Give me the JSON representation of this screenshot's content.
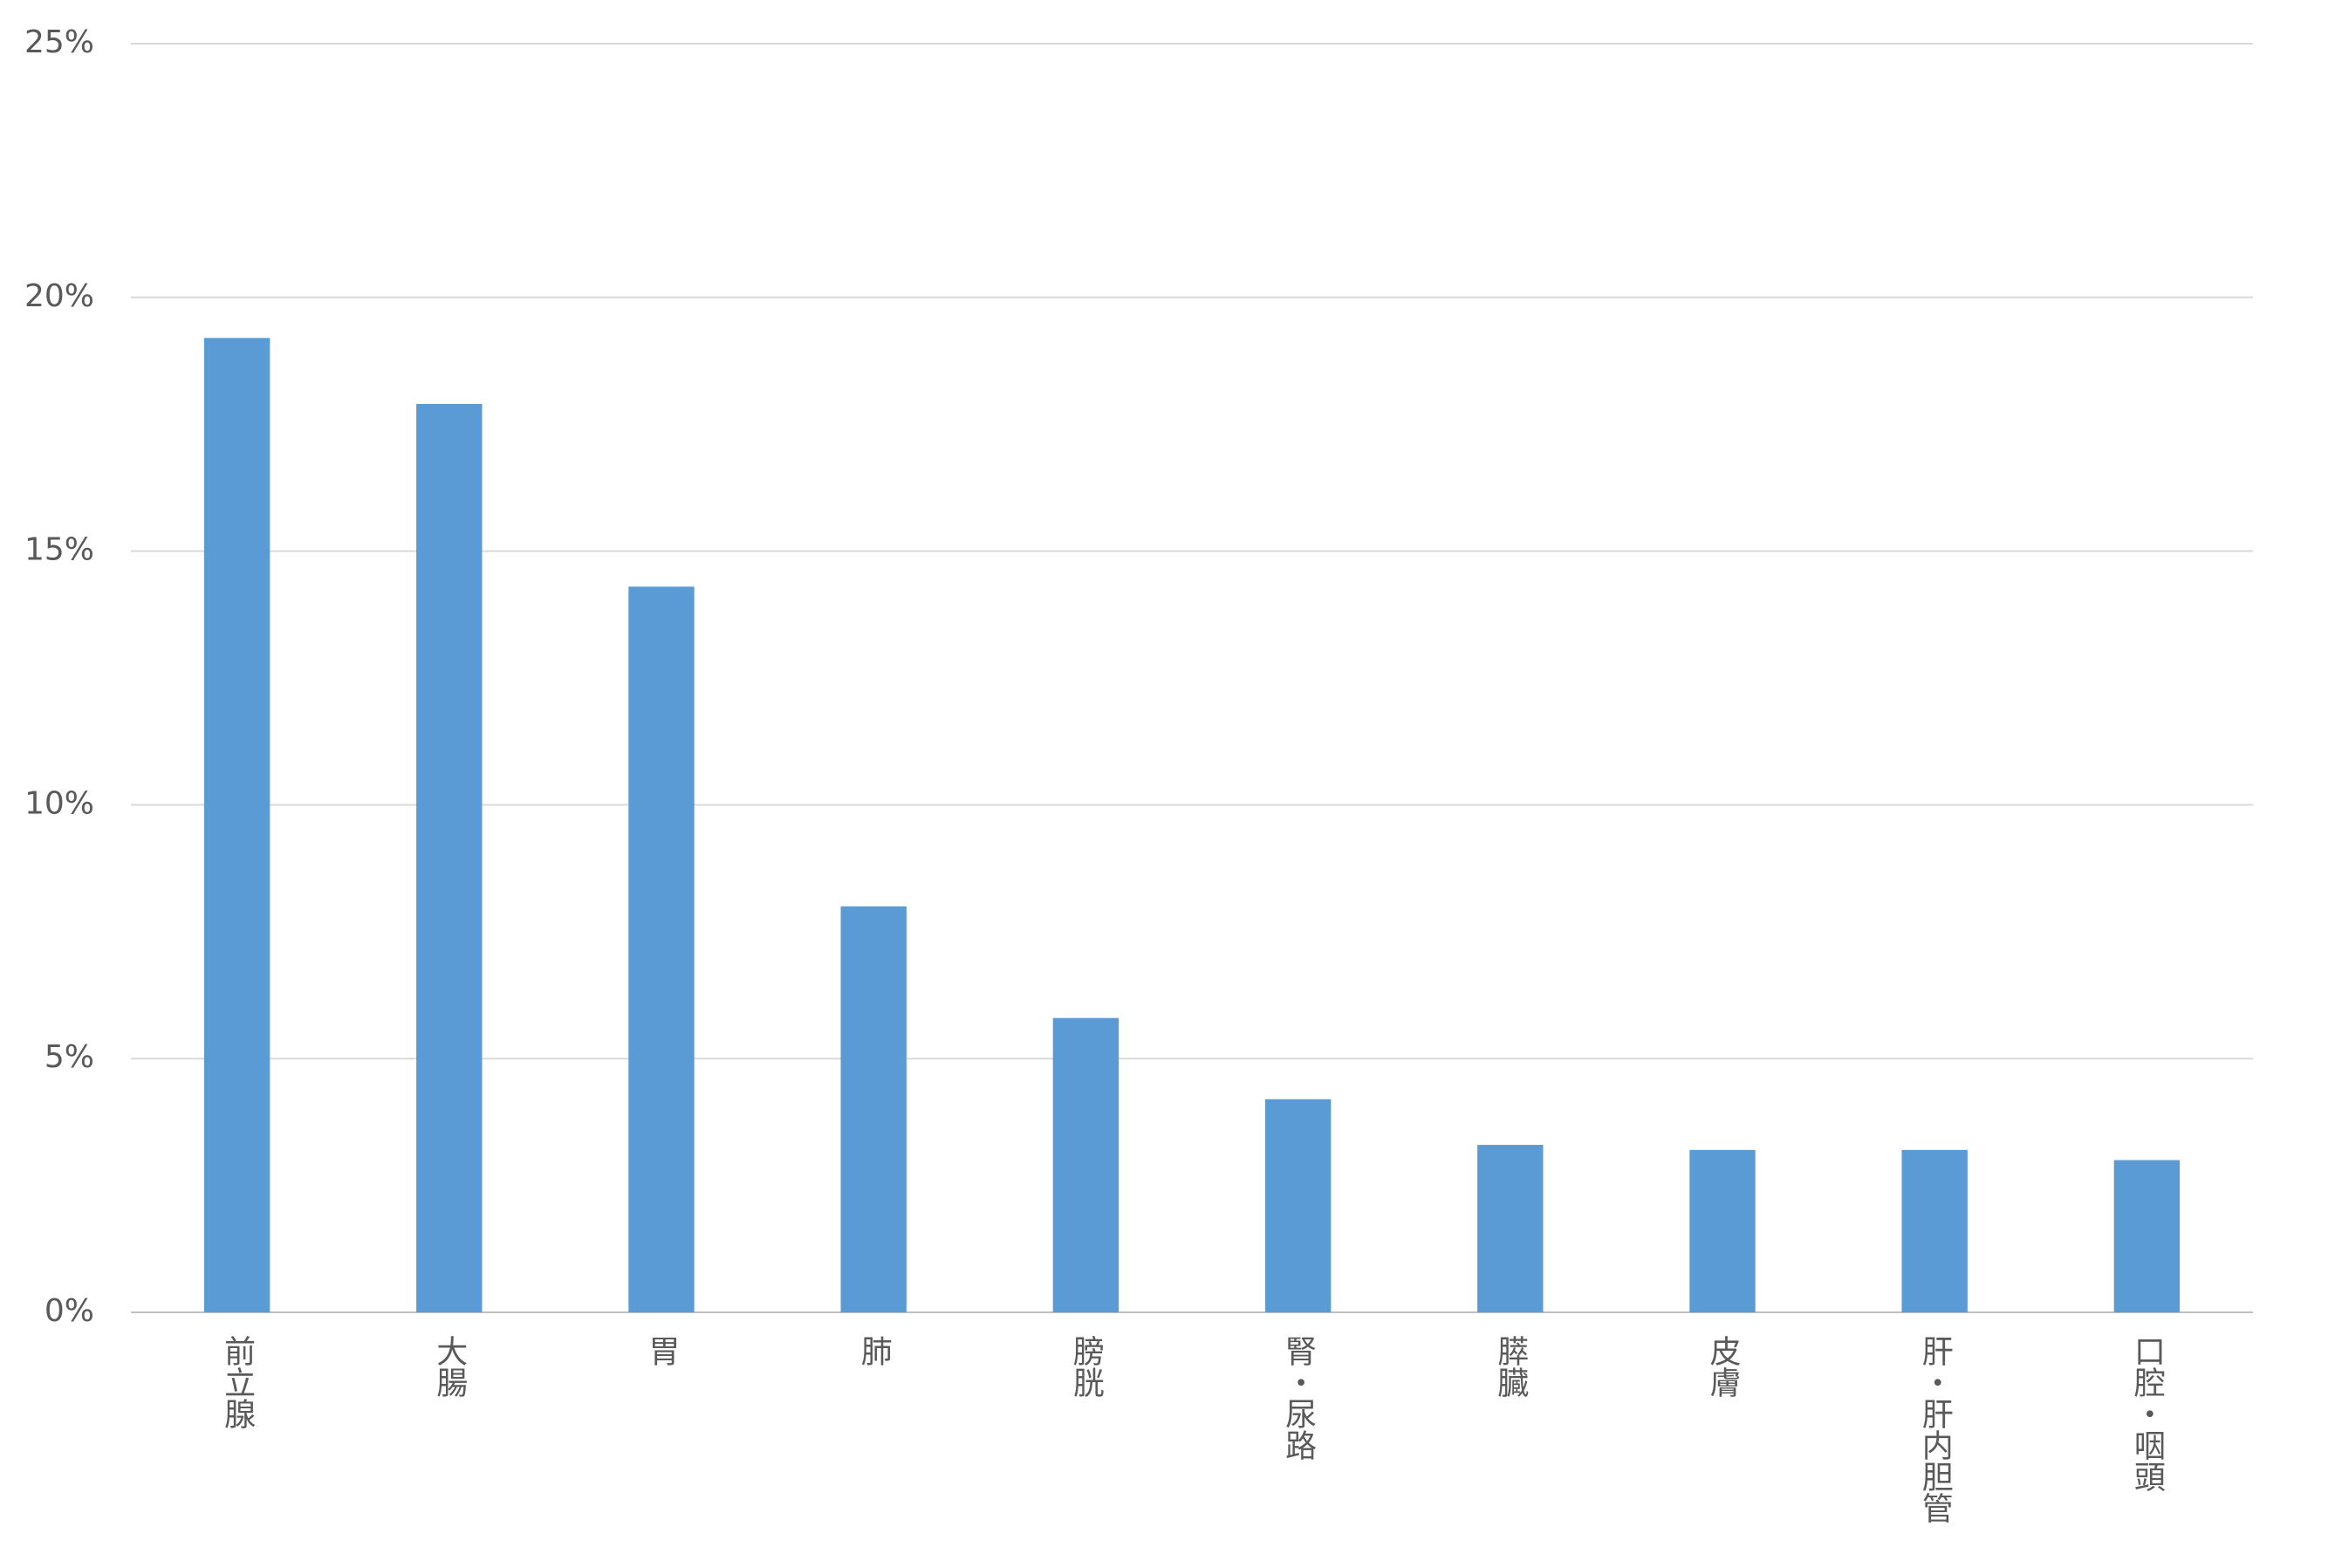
{
  "chart_data": {
    "type": "bar",
    "categories": [
      "前立腺",
      "大腸",
      "胃",
      "肺",
      "膀胱",
      "腎・尿路",
      "膵臓",
      "皮膚",
      "肝・肝内胆管",
      "口腔・咽頭"
    ],
    "values": [
      19.2,
      17.9,
      14.3,
      8.0,
      5.8,
      4.2,
      3.3,
      3.2,
      3.2,
      3.0
    ],
    "color": "#5b9bd5",
    "ylim": [
      0,
      25
    ],
    "yticks": [
      {
        "value": 0,
        "label": "0%"
      },
      {
        "value": 5,
        "label": "5%"
      },
      {
        "value": 10,
        "label": "10%"
      },
      {
        "value": 15,
        "label": "15%"
      },
      {
        "value": 20,
        "label": "20%"
      },
      {
        "value": 25,
        "label": "25%"
      }
    ],
    "grid": true
  }
}
